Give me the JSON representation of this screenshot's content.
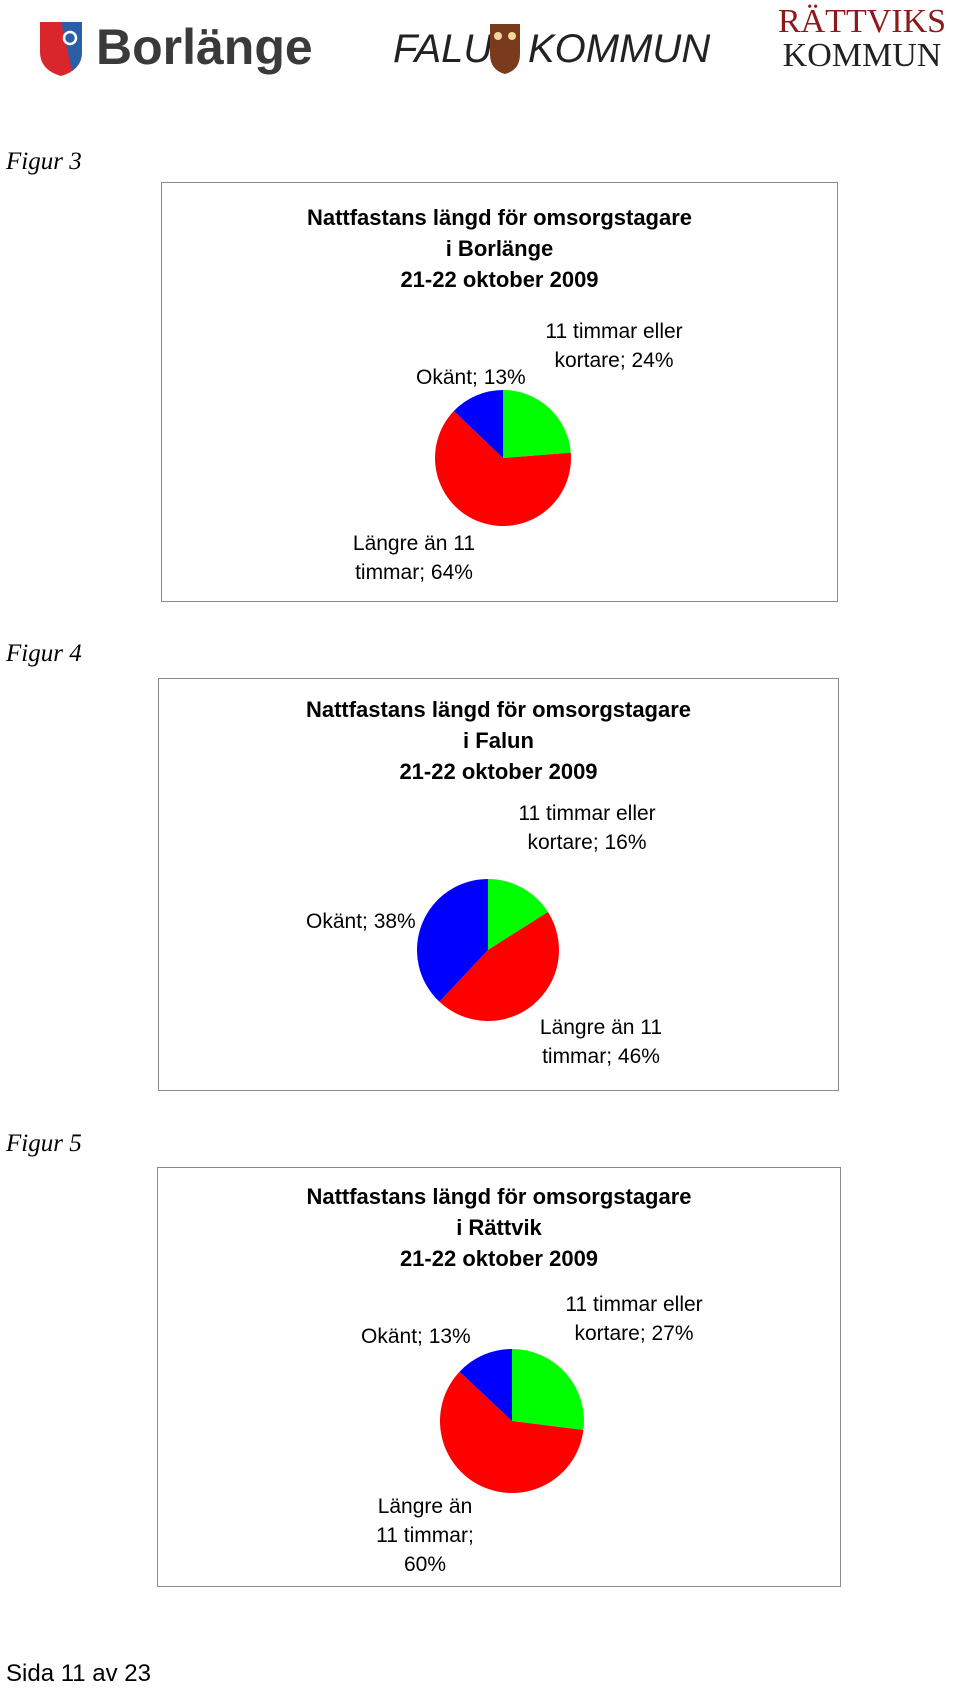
{
  "header": {
    "logos": [
      "Borlänge",
      "FALU",
      "KOMMUN",
      "RÄTTVIKS",
      "KOMMUN"
    ]
  },
  "figures": [
    {
      "label": "Figur 3",
      "chart_data": {
        "type": "pie",
        "title": [
          "Nattfastans längd för omsorgstagare",
          "i Borlänge",
          "21-22 oktober 2009"
        ],
        "values": [
          24,
          64,
          13
        ],
        "value_labels": [
          "11 timmar eller kortare; 24%",
          "Längre än 11 timmar; 64%",
          "Okänt; 13%"
        ],
        "colors": [
          "#00ff00",
          "#ff0000",
          "#0000ff"
        ]
      }
    },
    {
      "label": "Figur 4",
      "chart_data": {
        "type": "pie",
        "title": [
          "Nattfastans längd för omsorgstagare",
          "i Falun",
          "21-22 oktober 2009"
        ],
        "values": [
          16,
          46,
          38
        ],
        "value_labels": [
          "11 timmar eller kortare; 16%",
          "Längre än 11 timmar; 46%",
          "Okänt; 38%"
        ],
        "colors": [
          "#00ff00",
          "#ff0000",
          "#0000ff"
        ]
      }
    },
    {
      "label": "Figur 5",
      "chart_data": {
        "type": "pie",
        "title": [
          "Nattfastans längd för omsorgstagare",
          "i Rättvik",
          "21-22 oktober 2009"
        ],
        "values": [
          27,
          60,
          13
        ],
        "value_labels": [
          "11 timmar eller kortare; 27%",
          "Längre än 11 timmar; 60%",
          "Okänt; 13%"
        ],
        "colors": [
          "#00ff00",
          "#ff0000",
          "#0000ff"
        ]
      }
    }
  ],
  "footer": "Sida 11 av 23"
}
